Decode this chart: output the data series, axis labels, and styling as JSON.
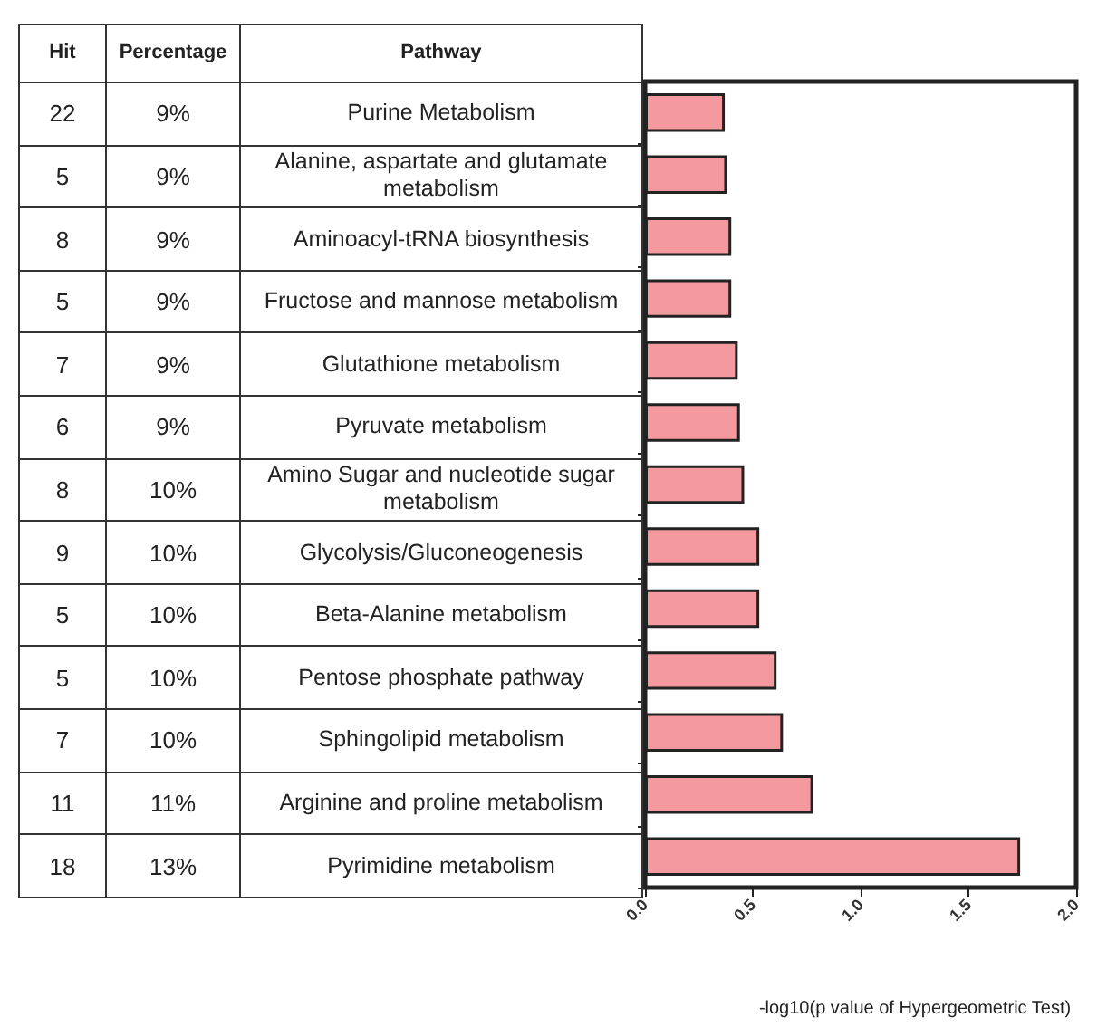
{
  "chart_data": {
    "type": "bar",
    "orientation": "horizontal",
    "categories": [
      "Purine Metabolism",
      "Alanine, aspartate and glutamate metabolism",
      "Aminoacyl-tRNA biosynthesis",
      "Fructose and mannose metabolism",
      "Glutathione metabolism",
      "Pyruvate metabolism",
      "Amino Sugar and nucleotide sugar metabolism",
      "Glycolysis/Gluconeogenesis",
      "Beta-Alanine metabolism",
      "Pentose phosphate pathway",
      "Sphingolipid metabolism",
      "Arginine and proline metabolism",
      "Pyrimidine metabolism"
    ],
    "values": [
      0.37,
      0.38,
      0.4,
      0.4,
      0.43,
      0.44,
      0.46,
      0.53,
      0.53,
      0.61,
      0.64,
      0.78,
      1.74
    ],
    "color": "#f4999e",
    "xlabel": "-log10(p value of Hypergeometric Test)",
    "xlim": [
      0,
      2
    ],
    "xticks": [
      {
        "value": 0,
        "label": "0.0"
      },
      {
        "value": 0.5,
        "label": "0.5"
      },
      {
        "value": 1,
        "label": "1.0"
      },
      {
        "value": 1.5,
        "label": "1.5"
      },
      {
        "value": 2,
        "label": "2.0"
      }
    ],
    "grid": false,
    "annotations": [
      "Hit",
      "Percentage",
      "Pathway",
      "22",
      "9%",
      "5",
      "9%",
      "8",
      "9%",
      "5",
      "9%",
      "7",
      "9%",
      "6",
      "9%",
      "8",
      "10%",
      "9",
      "10%",
      "5",
      "10%",
      "5",
      "10%",
      "7",
      "10%",
      "11",
      "11%",
      "18",
      "13%"
    ]
  }
}
